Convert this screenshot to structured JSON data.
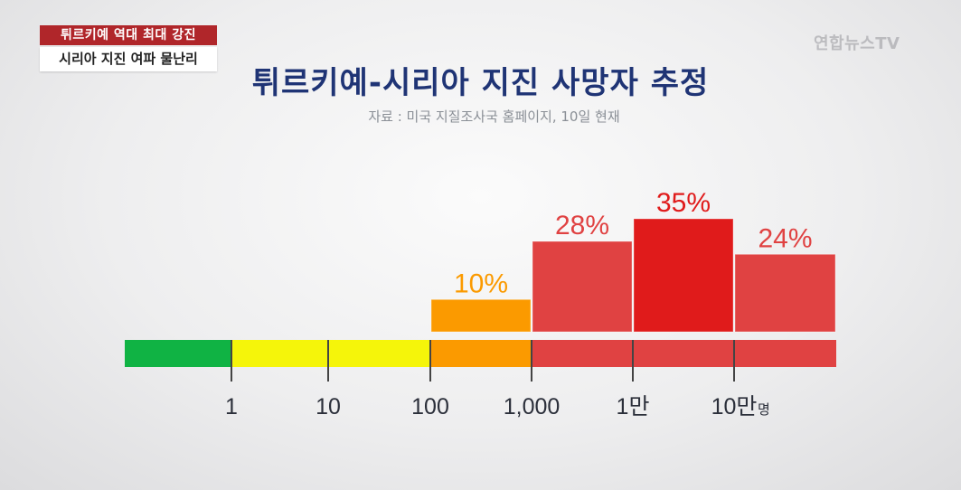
{
  "news": {
    "tag_top": "튀르키예 역대 최대 강진",
    "tag_bottom": "시리아 지진 여파 물난리",
    "watermark": "연합뉴스TV"
  },
  "chart_data": {
    "type": "bar",
    "title": "튀르키예-시리아 지진 사망자 추정",
    "subtitle": "자료 : 미국 지질조사국 홈페이지, 10일 현재",
    "unit": "명",
    "categories": [
      "100~1,000",
      "1,000~1만",
      "1만~10만",
      "10만~"
    ],
    "values": [
      10,
      28,
      35,
      24
    ],
    "value_labels": [
      "10%",
      "28%",
      "35%",
      "24%"
    ],
    "value_suffix": "%",
    "colors": [
      "#fb9a00",
      "#e04242",
      "#e01b1b",
      "#e04242"
    ],
    "scale": {
      "ticks": [
        "1",
        "10",
        "100",
        "1,000",
        "1만",
        "10만"
      ],
      "segment_colors": [
        "#10b344",
        "#f5f50a",
        "#f5f50a",
        "#fb9a00",
        "#e04242",
        "#e04242",
        "#e04242"
      ]
    }
  }
}
